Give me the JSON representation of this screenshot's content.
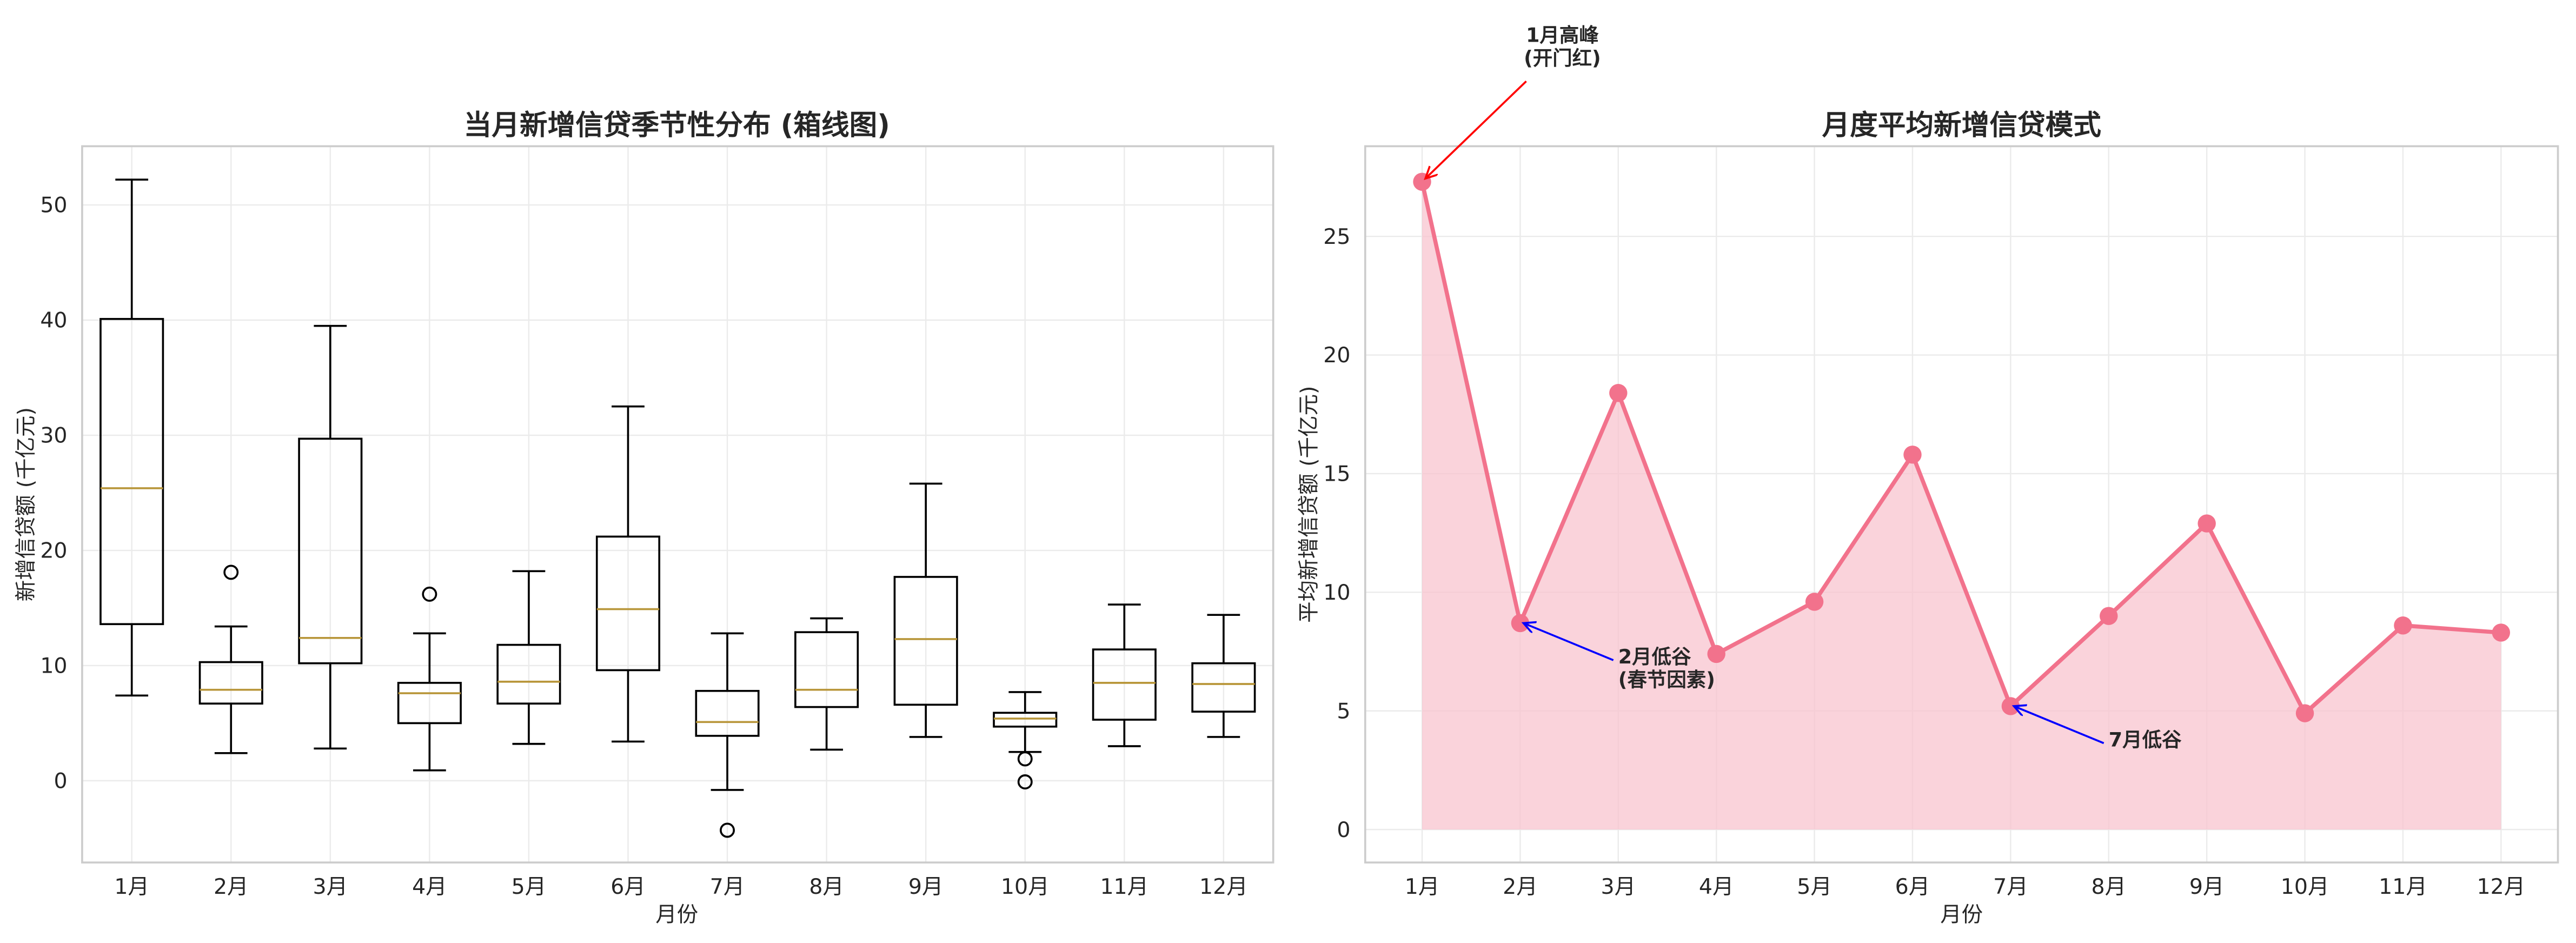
{
  "chart_data": [
    {
      "type": "box",
      "title": "当月新增信贷季节性分布 (箱线图)",
      "xlabel": "月份",
      "ylabel": "新增信贷额 (千亿元)",
      "ylim": [
        -7.1,
        55.1
      ],
      "yticks": [
        0,
        10,
        20,
        30,
        40,
        50
      ],
      "grid": true,
      "categories": [
        "1月",
        "2月",
        "3月",
        "4月",
        "5月",
        "6月",
        "7月",
        "8月",
        "9月",
        "10月",
        "11月",
        "12月"
      ],
      "boxes": [
        {
          "whislo": 7.4,
          "q1": 13.6,
          "med": 25.4,
          "q3": 40.1,
          "whishi": 52.2,
          "fliers": []
        },
        {
          "whislo": 2.4,
          "q1": 6.7,
          "med": 7.9,
          "q3": 10.3,
          "whishi": 13.4,
          "fliers": [
            18.1
          ]
        },
        {
          "whislo": 2.8,
          "q1": 10.2,
          "med": 12.4,
          "q3": 29.7,
          "whishi": 39.5,
          "fliers": []
        },
        {
          "whislo": 0.9,
          "q1": 5.0,
          "med": 7.6,
          "q3": 8.5,
          "whishi": 12.8,
          "fliers": [
            16.2
          ]
        },
        {
          "whislo": 3.2,
          "q1": 6.7,
          "med": 8.6,
          "q3": 11.8,
          "whishi": 18.2,
          "fliers": []
        },
        {
          "whislo": 3.4,
          "q1": 9.6,
          "med": 14.9,
          "q3": 21.2,
          "whishi": 32.5,
          "fliers": []
        },
        {
          "whislo": -0.8,
          "q1": 3.9,
          "med": 5.1,
          "q3": 7.8,
          "whishi": 12.8,
          "fliers": [
            -4.3
          ]
        },
        {
          "whislo": 2.7,
          "q1": 6.4,
          "med": 7.9,
          "q3": 12.9,
          "whishi": 14.1,
          "fliers": []
        },
        {
          "whislo": 3.8,
          "q1": 6.6,
          "med": 12.3,
          "q3": 17.7,
          "whishi": 25.8,
          "fliers": []
        },
        {
          "whislo": 2.5,
          "q1": 4.7,
          "med": 5.4,
          "q3": 5.9,
          "whishi": 7.7,
          "fliers": [
            1.9,
            -0.1
          ]
        },
        {
          "whislo": 3.0,
          "q1": 5.3,
          "med": 8.5,
          "q3": 11.4,
          "whishi": 15.3,
          "fliers": []
        },
        {
          "whislo": 3.8,
          "q1": 6.0,
          "med": 8.4,
          "q3": 10.2,
          "whishi": 14.4,
          "fliers": []
        }
      ],
      "colors": {
        "box": "#000000",
        "median": "#b8963a"
      }
    },
    {
      "type": "line",
      "title": "月度平均新增信贷模式",
      "xlabel": "月份",
      "ylabel": "平均新增信贷额 (千亿元)",
      "xlim": [
        0.42,
        12.58
      ],
      "ylim": [
        -1.39,
        28.8
      ],
      "yticks": [
        0,
        5,
        10,
        15,
        20,
        25
      ],
      "grid": true,
      "categories": [
        "1月",
        "2月",
        "3月",
        "4月",
        "5月",
        "6月",
        "7月",
        "8月",
        "9月",
        "10月",
        "11月",
        "12月"
      ],
      "values": [
        27.3,
        8.7,
        18.4,
        7.4,
        9.6,
        15.8,
        5.2,
        9.0,
        12.9,
        4.9,
        8.6,
        8.3
      ],
      "fill": true,
      "colors": {
        "line": "#f2728c",
        "fill": "#f8c4cf"
      },
      "annotations": [
        {
          "lines": [
            "1月高峰",
            "(开门红)"
          ],
          "x": 1,
          "y": 27.3,
          "text_x": 2.43,
          "text_y": 33.2,
          "arrow_color": "#ff0000"
        },
        {
          "lines": [
            "2月低谷",
            "(春节因素)"
          ],
          "x": 2,
          "y": 8.7,
          "text_x": 3.0,
          "text_y": 7.0,
          "arrow_color": "#0000ff"
        },
        {
          "lines": [
            "7月低谷"
          ],
          "x": 7,
          "y": 5.2,
          "text_x": 8.0,
          "text_y": 3.5,
          "arrow_color": "#0000ff"
        }
      ]
    }
  ]
}
